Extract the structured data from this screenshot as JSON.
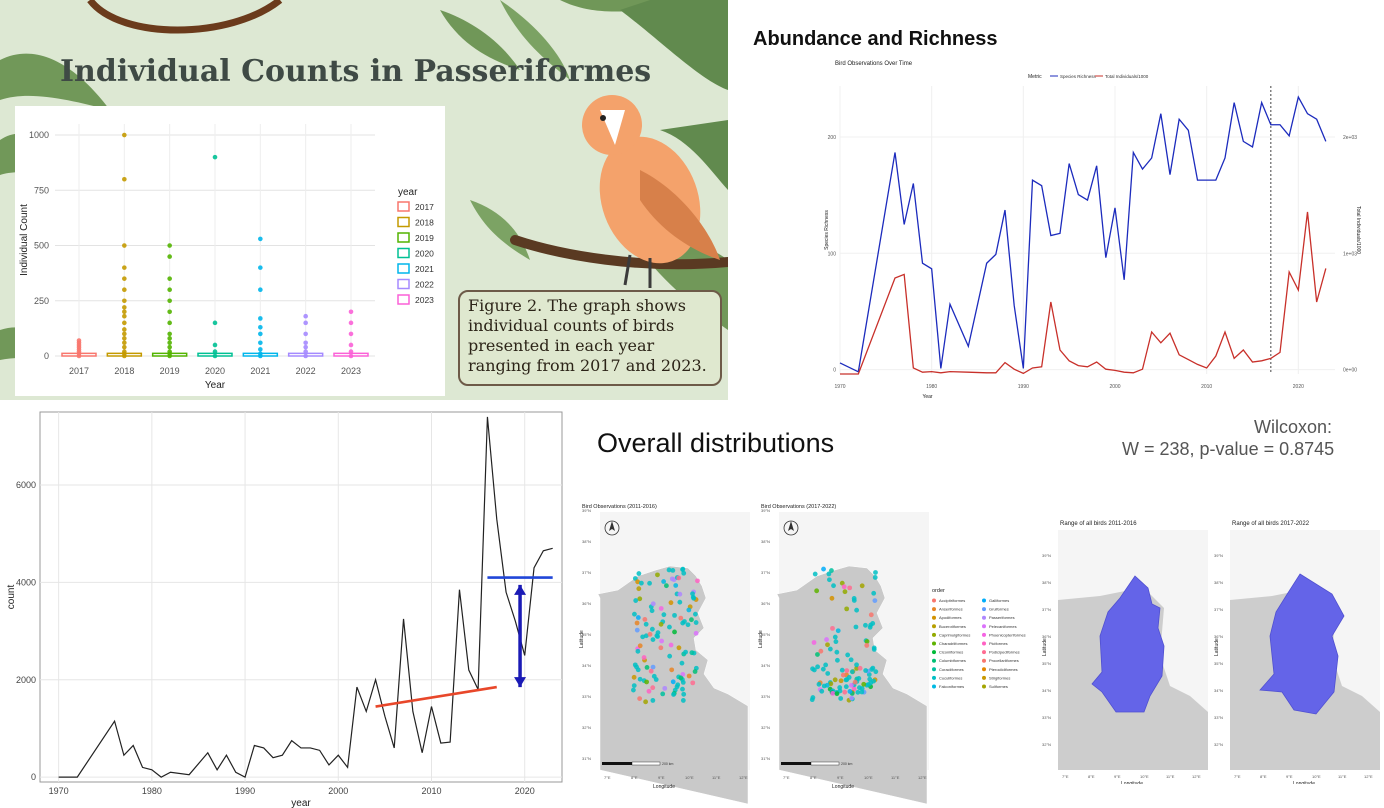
{
  "top_left": {
    "title": "Individual Counts in Passeriformes",
    "caption": "Figure 2. The graph shows individual counts of birds presented in each year ranging from 2017 and 2023."
  },
  "top_right": {
    "heading": "Abundance and Richness"
  },
  "bottom_right": {
    "heading": "Overall distributions",
    "stat_title": "Wilcoxon:",
    "stat_value": "W = 238, p-value = 0.8745"
  },
  "chart_data": [
    {
      "id": "passeriformes-boxplot",
      "type": "box",
      "title": "",
      "xlabel": "Year",
      "ylabel": "Individual Count",
      "categories": [
        "2017",
        "2018",
        "2019",
        "2020",
        "2021",
        "2022",
        "2023"
      ],
      "legend_title": "year",
      "legend": [
        "2017",
        "2018",
        "2019",
        "2020",
        "2021",
        "2022",
        "2023"
      ],
      "colors": [
        "#f8766d",
        "#c49a00",
        "#53b400",
        "#00c094",
        "#00b6eb",
        "#a58aff",
        "#fb61d7"
      ],
      "yticks": [
        0,
        250,
        500,
        750,
        1000
      ],
      "ylim": [
        0,
        1050
      ],
      "outliers": [
        [
          0,
          10,
          20,
          30,
          40,
          50,
          60,
          70
        ],
        [
          0,
          10,
          20,
          40,
          60,
          80,
          100,
          120,
          150,
          180,
          200,
          220,
          250,
          300,
          350,
          400,
          500,
          800,
          1000
        ],
        [
          0,
          10,
          20,
          40,
          60,
          80,
          100,
          150,
          200,
          250,
          300,
          350,
          450,
          500
        ],
        [
          0,
          20,
          50,
          150,
          900
        ],
        [
          0,
          10,
          30,
          60,
          100,
          130,
          170,
          300,
          400,
          530
        ],
        [
          0,
          20,
          40,
          60,
          100,
          150,
          180
        ],
        [
          0,
          20,
          50,
          100,
          150,
          200
        ]
      ]
    },
    {
      "id": "bird-observations-over-time",
      "type": "line",
      "title": "Bird Observations Over Time",
      "legend_title": "Metric",
      "legend": [
        "Species Richness",
        "Total Individuals/1000"
      ],
      "xlabel": "Year",
      "ylabel": "Species Richness",
      "ylabel_right": "Total Individuals/1000",
      "xticks": [
        1970,
        1980,
        1990,
        2000,
        2010,
        2020
      ],
      "yticks": [
        0,
        100,
        200
      ],
      "yticks_right": [
        "0e+00",
        "1e+03",
        "2e+03"
      ],
      "xlim": [
        1970,
        2024
      ],
      "ylim": [
        0,
        260
      ],
      "vline": 2017,
      "series": [
        {
          "name": "Species Richness",
          "color": "#1c2bbd",
          "x": [
            1970,
            1972,
            1976,
            1977,
            1978,
            1979,
            1980,
            1981,
            1982,
            1984,
            1986,
            1987,
            1988,
            1989,
            1990,
            1991,
            1992,
            1993,
            1994,
            1995,
            1996,
            1997,
            1998,
            1999,
            2000,
            2001,
            2002,
            2003,
            2004,
            2005,
            2006,
            2007,
            2008,
            2009,
            2010,
            2011,
            2012,
            2013,
            2014,
            2015,
            2016,
            2017,
            2018,
            2019,
            2020,
            2021,
            2022,
            2023
          ],
          "y": [
            10,
            2,
            200,
            135,
            172,
            100,
            95,
            5,
            63,
            25,
            100,
            108,
            148,
            62,
            5,
            175,
            170,
            125,
            127,
            190,
            162,
            157,
            188,
            105,
            150,
            85,
            200,
            185,
            195,
            235,
            180,
            230,
            220,
            175,
            175,
            175,
            195,
            245,
            210,
            205,
            245,
            225,
            225,
            215,
            250,
            235,
            230,
            210
          ]
        },
        {
          "name": "Total Individuals/1000",
          "color": "#c8302a",
          "x": [
            1970,
            1972,
            1976,
            1977,
            1978,
            1979,
            1980,
            1981,
            1982,
            1984,
            1986,
            1987,
            1988,
            1989,
            1990,
            1991,
            1992,
            1993,
            1994,
            1995,
            1996,
            1997,
            1998,
            1999,
            2000,
            2001,
            2002,
            2003,
            2004,
            2005,
            2006,
            2007,
            2008,
            2009,
            2010,
            2011,
            2012,
            2013,
            2014,
            2015,
            2016,
            2017,
            2018,
            2019,
            2020,
            2021,
            2022,
            2023
          ],
          "y": [
            0,
            0,
            800,
            830,
            50,
            15,
            20,
            10,
            20,
            15,
            10,
            10,
            95,
            40,
            5,
            50,
            60,
            600,
            200,
            110,
            70,
            60,
            100,
            40,
            30,
            15,
            10,
            40,
            350,
            260,
            340,
            160,
            120,
            80,
            50,
            150,
            350,
            130,
            200,
            100,
            110,
            130,
            180,
            850,
            700,
            1350,
            600,
            880
          ]
        }
      ]
    },
    {
      "id": "count-over-years",
      "type": "line",
      "title": "",
      "xlabel": "year",
      "ylabel": "count",
      "xticks": [
        1970,
        1980,
        1990,
        2000,
        2010,
        2020
      ],
      "yticks": [
        0,
        2000,
        4000,
        6000
      ],
      "xlim": [
        1968,
        2024
      ],
      "ylim": [
        -100,
        7500
      ],
      "series": [
        {
          "name": "count",
          "color": "#222222",
          "x": [
            1970,
            1972,
            1976,
            1977,
            1978,
            1979,
            1980,
            1981,
            1982,
            1984,
            1986,
            1987,
            1988,
            1989,
            1990,
            1991,
            1992,
            1993,
            1994,
            1995,
            1996,
            1997,
            1998,
            1999,
            2000,
            2001,
            2002,
            2003,
            2004,
            2005,
            2006,
            2007,
            2008,
            2009,
            2010,
            2011,
            2012,
            2013,
            2014,
            2015,
            2016,
            2017,
            2018,
            2019,
            2020,
            2021,
            2022,
            2023
          ],
          "y": [
            0,
            0,
            1150,
            450,
            650,
            200,
            150,
            0,
            100,
            50,
            500,
            150,
            450,
            100,
            0,
            650,
            600,
            400,
            450,
            750,
            600,
            600,
            550,
            250,
            450,
            200,
            1850,
            1350,
            2000,
            1250,
            600,
            3250,
            1350,
            500,
            1450,
            700,
            720,
            3850,
            2200,
            1800,
            7400,
            5300,
            3800,
            3200,
            2500,
            4300,
            4650,
            4700
          ]
        },
        {
          "name": "trend-before",
          "color": "#e8472a",
          "x": [
            2004,
            2017
          ],
          "y": [
            1450,
            1850
          ]
        },
        {
          "name": "trend-after",
          "color": "#2046d8",
          "x": [
            2016,
            2023
          ],
          "y": [
            4100,
            4100
          ]
        }
      ]
    },
    {
      "id": "obs-2011-2016",
      "type": "scatter",
      "title": "Bird Observations (2011-2016)",
      "xlabel": "Longitude",
      "ylabel": "Latitude",
      "xticks": [
        "7°E",
        "8°E",
        "9°E",
        "10°E",
        "11°E",
        "12°E"
      ],
      "yticks": [
        "31°N",
        "32°N",
        "33°N",
        "34°N",
        "35°N",
        "36°N",
        "37°N",
        "38°N",
        "39°N"
      ],
      "scale_label": "200 km"
    },
    {
      "id": "obs-2017-2022",
      "type": "scatter",
      "title": "Bird Observations (2017-2022)",
      "xlabel": "Longitude",
      "ylabel": "Latitude",
      "xticks": [
        "7°E",
        "8°E",
        "9°E",
        "10°E",
        "11°E",
        "12°E"
      ],
      "yticks": [
        "31°N",
        "32°N",
        "33°N",
        "34°N",
        "35°N",
        "36°N",
        "37°N",
        "38°N",
        "39°N"
      ],
      "scale_label": "200 km",
      "legend_title": "order",
      "legend": [
        "Accipitriformes",
        "Anseriformes",
        "Apodiformes",
        "Bucerotiformes",
        "Caprimulgiformes",
        "Charadriiformes",
        "Ciconiiformes",
        "Columbiformes",
        "Coraciiformes",
        "Cuculiformes",
        "Falconiformes",
        "Galliformes",
        "Gruiformes",
        "Passeriformes",
        "Pelecaniformes",
        "Phoenicopteriformes",
        "Piciformes",
        "Podicipediformes",
        "Procellariiformes",
        "Pteroclidiformes",
        "Strigiformes",
        "Suliformes"
      ],
      "legend_colors": [
        "#f8766d",
        "#e88526",
        "#d39200",
        "#b79f00",
        "#93aa00",
        "#5eb300",
        "#00ba38",
        "#00bf74",
        "#00c19f",
        "#00bfc4",
        "#00b9e3",
        "#00adfa",
        "#619cff",
        "#ae87ff",
        "#db72fb",
        "#f564e3",
        "#ff61c3",
        "#ff6c91",
        "#f8766d",
        "#e58700",
        "#c99800",
        "#a3a500"
      ]
    },
    {
      "id": "range-2011-2016",
      "type": "area",
      "title": "Range of all birds 2011-2016",
      "xlabel": "Longitude",
      "ylabel": "Latitude",
      "xticks": [
        "7°E",
        "8°E",
        "9°E",
        "10°E",
        "11°E",
        "12°E"
      ],
      "yticks": [
        "32°N",
        "33°N",
        "34°N",
        "35°N",
        "36°N",
        "37°N",
        "38°N",
        "39°N"
      ]
    },
    {
      "id": "range-2017-2022",
      "type": "area",
      "title": "Range of all birds 2017-2022",
      "xlabel": "Longitude",
      "ylabel": "Latitude",
      "xticks": [
        "7°E",
        "8°E",
        "9°E",
        "10°E",
        "11°E",
        "12°E"
      ],
      "yticks": [
        "32°N",
        "33°N",
        "34°N",
        "35°N",
        "36°N",
        "37°N",
        "38°N",
        "39°N"
      ]
    }
  ]
}
